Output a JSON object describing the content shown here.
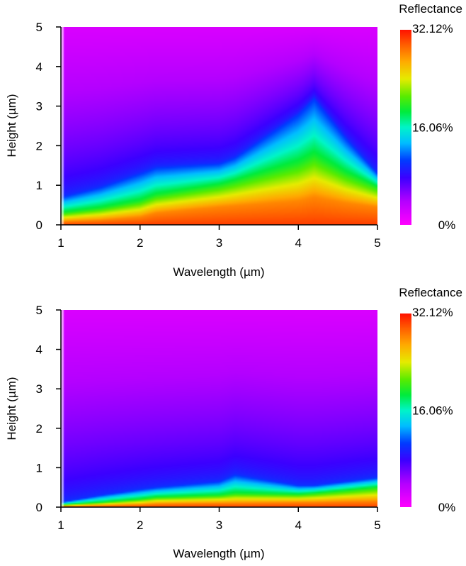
{
  "chart_data": [
    {
      "type": "heatmap",
      "title": "",
      "xlabel": "Wavelength (µm)",
      "ylabel": "Height (µm)",
      "xlim": [
        1,
        5
      ],
      "ylim": [
        0,
        5
      ],
      "x_ticks": [
        "1",
        "2",
        "3",
        "4",
        "5"
      ],
      "y_ticks": [
        "0",
        "1",
        "2",
        "3",
        "4",
        "5"
      ],
      "colorbar": {
        "title": "Reflectance",
        "min": 0,
        "max": 32.12,
        "labels": [
          "32.12%",
          "16.06%",
          "0%"
        ],
        "label_values": [
          32.12,
          16.06,
          0
        ]
      },
      "x": [
        1.0,
        1.5,
        2.0,
        2.2,
        3.0,
        3.2,
        4.0,
        4.2,
        4.6,
        5.0
      ],
      "y": [
        0,
        0.1,
        0.2,
        0.3,
        0.4,
        0.5,
        0.6,
        0.8,
        1.0,
        1.2,
        1.5,
        2.0,
        2.5,
        3.0,
        3.5,
        4.0,
        4.5,
        5.0
      ],
      "profile_peak_height": [
        0.08,
        0.12,
        0.2,
        0.3,
        0.45,
        0.48,
        0.6,
        0.7,
        0.55,
        0.45
      ],
      "profile_green_height": [
        0.3,
        0.42,
        0.6,
        0.75,
        1.0,
        1.1,
        1.55,
        1.75,
        1.3,
        0.95
      ],
      "profile_blue_height": [
        0.7,
        0.95,
        1.3,
        1.45,
        1.55,
        1.7,
        2.8,
        3.2,
        2.2,
        1.3
      ],
      "edge_value": 26
    },
    {
      "type": "heatmap",
      "title": "",
      "xlabel": "Wavelength (µm)",
      "ylabel": "Height (µm)",
      "xlim": [
        1,
        5
      ],
      "ylim": [
        0,
        5
      ],
      "x_ticks": [
        "1",
        "2",
        "3",
        "4",
        "5"
      ],
      "y_ticks": [
        "0",
        "1",
        "2",
        "3",
        "4",
        "5"
      ],
      "colorbar": {
        "title": "Reflectance",
        "min": 0,
        "max": 32.12,
        "labels": [
          "32.12%",
          "16.06%",
          "0%"
        ],
        "label_values": [
          32.12,
          16.06,
          0
        ]
      },
      "x": [
        1.0,
        1.5,
        2.0,
        2.2,
        3.0,
        3.2,
        4.0,
        4.2,
        4.6,
        5.0
      ],
      "y": [
        0,
        0.1,
        0.2,
        0.3,
        0.4,
        0.5,
        0.6,
        0.8,
        1.0,
        1.2,
        1.5,
        2.0,
        2.5,
        3.0,
        3.5,
        4.0,
        4.5,
        5.0
      ],
      "profile_peak_height": [
        0.02,
        0.04,
        0.06,
        0.08,
        0.1,
        0.1,
        0.12,
        0.12,
        0.14,
        0.15
      ],
      "profile_green_height": [
        0.06,
        0.12,
        0.2,
        0.25,
        0.3,
        0.35,
        0.32,
        0.35,
        0.42,
        0.5
      ],
      "profile_blue_height": [
        0.12,
        0.3,
        0.45,
        0.5,
        0.65,
        0.82,
        0.55,
        0.55,
        0.65,
        0.75
      ],
      "edge_value": 0
    }
  ]
}
